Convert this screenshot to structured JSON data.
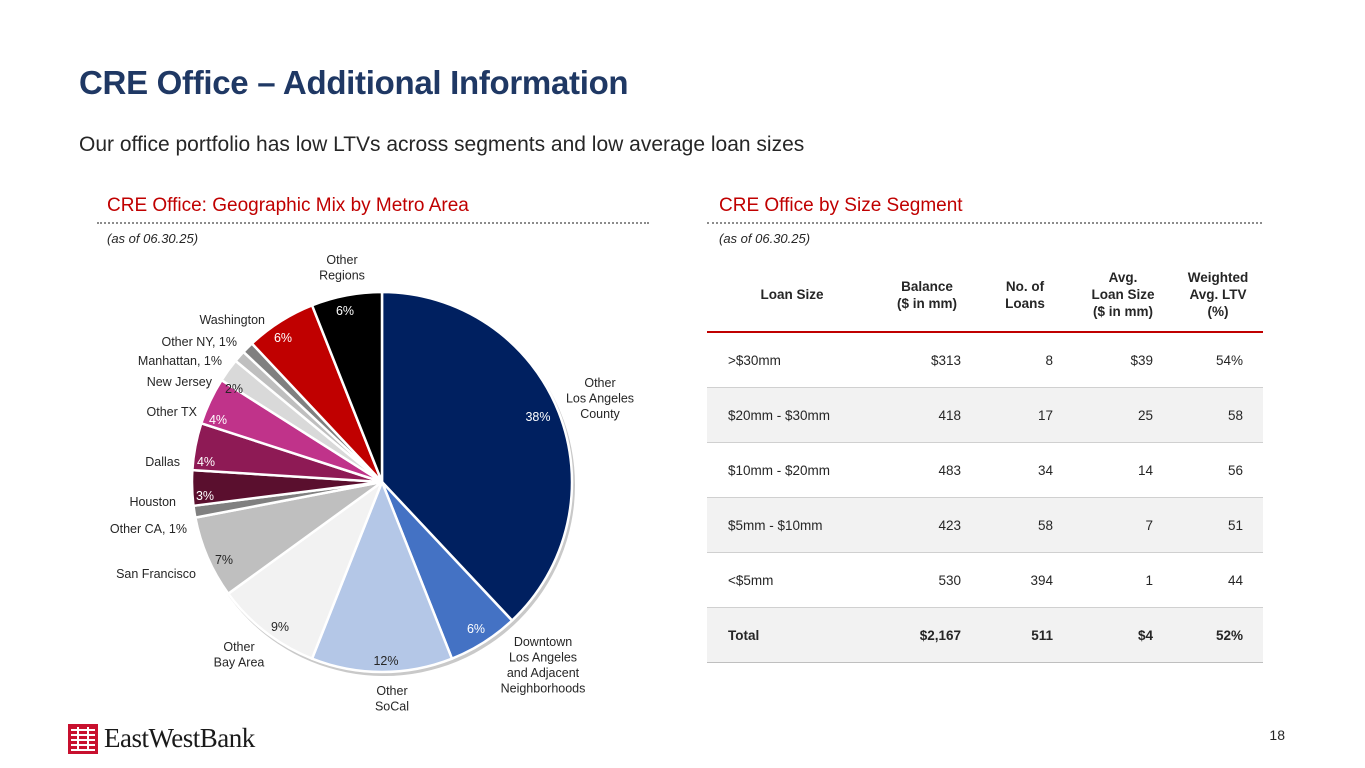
{
  "page": {
    "title": "CRE Office – Additional Information",
    "subtitle": "Our office portfolio has low LTVs across segments and low average loan sizes",
    "page_number": "18",
    "logo_text": "EastWestBank"
  },
  "geo": {
    "heading": "CRE Office: Geographic Mix by Metro Area",
    "as_of": "(as of 06.30.25)"
  },
  "segment": {
    "heading": "CRE Office by Size Segment",
    "as_of": "(as of 06.30.25)",
    "headers": {
      "loan_size": "Loan Size",
      "balance": [
        "Balance",
        "($ in mm)"
      ],
      "num_loans": [
        "No. of",
        "Loans"
      ],
      "avg_size": [
        "Avg.",
        "Loan Size",
        "($ in mm)"
      ],
      "ltv": [
        "Weighted",
        "Avg. LTV",
        "(%)"
      ]
    },
    "rows": [
      {
        "size": ">$30mm",
        "balance": "$313",
        "loans": "8",
        "avg": "$39",
        "ltv": "54%"
      },
      {
        "size": "$20mm - $30mm",
        "balance": "418",
        "loans": "17",
        "avg": "25",
        "ltv": "58"
      },
      {
        "size": "$10mm - $20mm",
        "balance": "483",
        "loans": "34",
        "avg": "14",
        "ltv": "56"
      },
      {
        "size": "$5mm - $10mm",
        "balance": "423",
        "loans": "58",
        "avg": "7",
        "ltv": "51"
      },
      {
        "size": "<$5mm",
        "balance": "530",
        "loans": "394",
        "avg": "1",
        "ltv": "44"
      }
    ],
    "total": {
      "size": "Total",
      "balance": "$2,167",
      "loans": "511",
      "avg": "$4",
      "ltv": "52%"
    }
  },
  "chart_data": {
    "type": "pie",
    "title": "CRE Office: Geographic Mix by Metro Area",
    "start_angle_deg": 0,
    "direction": "clockwise",
    "slices": [
      {
        "label": [
          "Other",
          "Los Angeles",
          "County"
        ],
        "value": 38,
        "pct_label": "38%",
        "color": "#002060",
        "pct_color": "#ffffff"
      },
      {
        "label": [
          "Downtown",
          "Los Angeles",
          "and Adjacent",
          "Neighborhoods"
        ],
        "value": 6,
        "pct_label": "6%",
        "color": "#4472c4",
        "pct_color": "#ffffff"
      },
      {
        "label": [
          "Other",
          "SoCal"
        ],
        "value": 12,
        "pct_label": "12%",
        "color": "#b4c7e7",
        "pct_color": "#262626"
      },
      {
        "label": [
          "Other",
          "Bay Area"
        ],
        "value": 9,
        "pct_label": "9%",
        "color": "#f2f2f2",
        "pct_color": "#262626"
      },
      {
        "label": [
          "San Francisco"
        ],
        "value": 7,
        "pct_label": "7%",
        "color": "#bfbfbf",
        "pct_color": "#262626"
      },
      {
        "label": [
          "Other CA, 1%"
        ],
        "value": 1,
        "pct_label": "",
        "color": "#808080",
        "pct_color": "#262626"
      },
      {
        "label": [
          "Houston"
        ],
        "value": 3,
        "pct_label": "3%",
        "color": "#5a0f2e",
        "pct_color": "#ffffff"
      },
      {
        "label": [
          "Dallas"
        ],
        "value": 4,
        "pct_label": "4%",
        "color": "#8e1a55",
        "pct_color": "#ffffff"
      },
      {
        "label": [
          "Other TX"
        ],
        "value": 4,
        "pct_label": "4%",
        "color": "#c0338a",
        "pct_color": "#ffffff"
      },
      {
        "label": [
          "New Jersey"
        ],
        "value": 2,
        "pct_label": "2%",
        "color": "#d9d9d9",
        "pct_color": "#262626"
      },
      {
        "label": [
          "Manhattan, 1%"
        ],
        "value": 1,
        "pct_label": "",
        "color": "#bfbfbf",
        "pct_color": "#262626"
      },
      {
        "label": [
          "Other NY, 1%"
        ],
        "value": 1,
        "pct_label": "",
        "color": "#808080",
        "pct_color": "#262626"
      },
      {
        "label": [
          "Washington"
        ],
        "value": 6,
        "pct_label": "6%",
        "color": "#c00000",
        "pct_color": "#ffffff"
      },
      {
        "label": [
          "Other",
          "Regions"
        ],
        "value": 6,
        "pct_label": "6%",
        "color": "#000000",
        "pct_color": "#ffffff"
      }
    ]
  }
}
